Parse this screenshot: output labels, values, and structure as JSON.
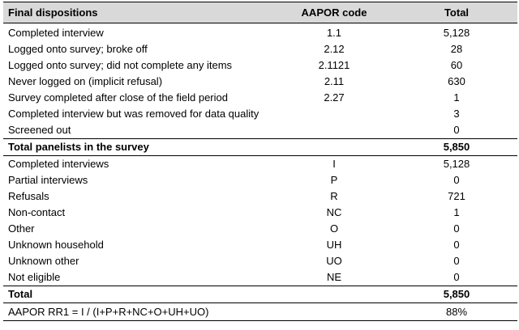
{
  "header": {
    "col1": "Final dispositions",
    "col2": "AAPOR code",
    "col3": "Total"
  },
  "dispositions": [
    {
      "label": "Completed interview",
      "code": "1.1",
      "total": "5,128"
    },
    {
      "label": "Logged onto survey; broke off",
      "code": "2.12",
      "total": "28"
    },
    {
      "label": "Logged onto survey; did not complete any items",
      "code": "2.1121",
      "total": "60"
    },
    {
      "label": "Never logged on (implicit refusal)",
      "code": "2.11",
      "total": "630"
    },
    {
      "label": "Survey completed after close of the field period",
      "code": "2.27",
      "total": "1"
    },
    {
      "label": "Completed interview but was removed for data quality",
      "code": "",
      "total": "3"
    },
    {
      "label": "Screened out",
      "code": "",
      "total": "0"
    }
  ],
  "total_panelists": {
    "label": "Total panelists in the survey",
    "total": "5,850"
  },
  "categories": [
    {
      "label": "Completed interviews",
      "code": "I",
      "total": "5,128"
    },
    {
      "label": "Partial interviews",
      "code": "P",
      "total": "0"
    },
    {
      "label": "Refusals",
      "code": "R",
      "total": "721"
    },
    {
      "label": "Non-contact",
      "code": "NC",
      "total": "1"
    },
    {
      "label": "Other",
      "code": "O",
      "total": "0"
    },
    {
      "label": "Unknown household",
      "code": "UH",
      "total": "0"
    },
    {
      "label": "Unknown other",
      "code": "UO",
      "total": "0"
    },
    {
      "label": "Not eligible",
      "code": "NE",
      "total": "0"
    }
  ],
  "grand_total": {
    "label": "Total",
    "total": "5,850"
  },
  "response_rate": {
    "label": "AAPOR RR1 = I / (I+P+R+NC+O+UH+UO)",
    "total": "88%"
  }
}
